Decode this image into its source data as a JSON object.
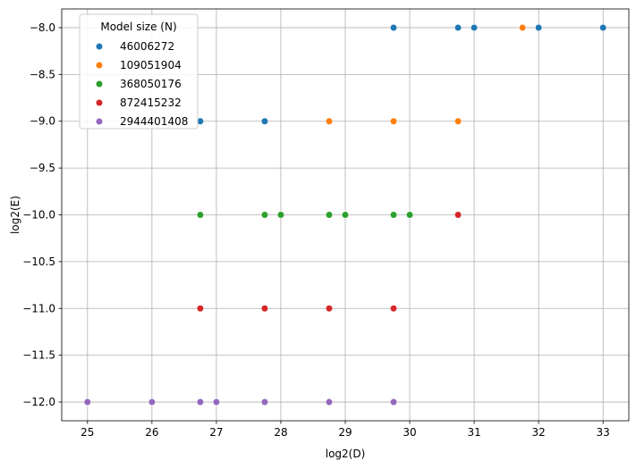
{
  "chart_data": {
    "type": "scatter",
    "xlabel": "log2(D)",
    "ylabel": "log2(E)",
    "xlim": [
      24.6,
      33.4
    ],
    "ylim": [
      -12.2,
      -7.8
    ],
    "xticks": [
      25,
      26,
      27,
      28,
      29,
      30,
      31,
      32,
      33
    ],
    "yticks": [
      -8.0,
      -8.5,
      -9.0,
      -9.5,
      -10.0,
      -10.5,
      -11.0,
      -11.5,
      -12.0
    ],
    "xtick_labels": [
      "25",
      "26",
      "27",
      "28",
      "29",
      "30",
      "31",
      "32",
      "33"
    ],
    "ytick_labels": [
      "−8.0",
      "−8.5",
      "−9.0",
      "−9.5",
      "−10.0",
      "−10.5",
      "−11.0",
      "−11.5",
      "−12.0"
    ],
    "grid": true,
    "legend": {
      "title": "Model size (N)",
      "placement": "top-left"
    },
    "series": [
      {
        "name": "46006272",
        "color": "#1f77b4",
        "points": [
          [
            29.75,
            -8
          ],
          [
            30.75,
            -8
          ],
          [
            31.0,
            -8
          ],
          [
            32.0,
            -8
          ],
          [
            33.0,
            -8
          ],
          [
            26.75,
            -9
          ],
          [
            27.75,
            -9
          ]
        ]
      },
      {
        "name": "109051904",
        "color": "#ff7f0e",
        "points": [
          [
            31.75,
            -8
          ],
          [
            28.75,
            -9
          ],
          [
            29.75,
            -9
          ],
          [
            30.75,
            -9
          ]
        ]
      },
      {
        "name": "368050176",
        "color": "#2ca02c",
        "points": [
          [
            26.75,
            -10
          ],
          [
            27.75,
            -10
          ],
          [
            28.0,
            -10
          ],
          [
            28.75,
            -10
          ],
          [
            29.0,
            -10
          ],
          [
            29.75,
            -10
          ],
          [
            30.0,
            -10
          ]
        ]
      },
      {
        "name": "872415232",
        "color": "#d62728",
        "points": [
          [
            30.75,
            -10
          ],
          [
            26.75,
            -11
          ],
          [
            27.75,
            -11
          ],
          [
            28.75,
            -11
          ],
          [
            29.75,
            -11
          ]
        ]
      },
      {
        "name": "2944401408",
        "color": "#9467bd",
        "points": [
          [
            25.0,
            -12
          ],
          [
            26.0,
            -12
          ],
          [
            26.75,
            -12
          ],
          [
            27.0,
            -12
          ],
          [
            27.75,
            -12
          ],
          [
            28.75,
            -12
          ],
          [
            29.75,
            -12
          ]
        ]
      }
    ]
  }
}
